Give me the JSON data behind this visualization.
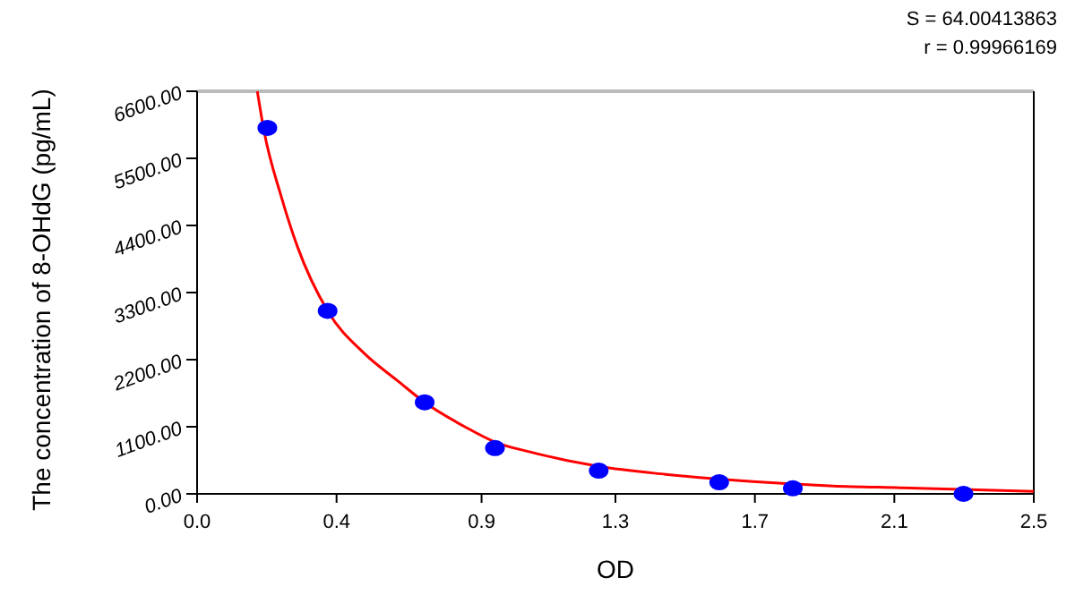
{
  "chart_data": {
    "type": "scatter",
    "xlabel": "OD",
    "ylabel": "The concentration of 8-OHdG (pg/mL)",
    "annotations": [
      "S = 64.00413863",
      "r = 0.99966169"
    ],
    "xlim": [
      0,
      2.5
    ],
    "ylim": [
      0,
      6600
    ],
    "xticks": [
      {
        "value": 0,
        "label": "0.0"
      },
      {
        "value": 0.4167,
        "label": "0.4"
      },
      {
        "value": 0.85,
        "label": "0.9"
      },
      {
        "value": 1.25,
        "label": "1.3"
      },
      {
        "value": 1.6667,
        "label": "1.7"
      },
      {
        "value": 2.0833,
        "label": "2.1"
      },
      {
        "value": 2.5,
        "label": "2.5"
      }
    ],
    "yticks": [
      {
        "value": 0,
        "label": "0.00"
      },
      {
        "value": 1100,
        "label": "1100.00"
      },
      {
        "value": 2200,
        "label": "2200.00"
      },
      {
        "value": 3300,
        "label": "3300.00"
      },
      {
        "value": 4400,
        "label": "4400.00"
      },
      {
        "value": 5500,
        "label": "5500.00"
      },
      {
        "value": 6600,
        "label": "6600.00"
      }
    ],
    "grid": false,
    "marker": "circle",
    "series": [
      {
        "type": "line",
        "marker": "none",
        "color": "#ff0000",
        "x": [
          0.18,
          0.2,
          0.25,
          0.3,
          0.39,
          0.5,
          0.6,
          0.68,
          0.8,
          0.89,
          1.0,
          1.2,
          1.4,
          1.66,
          1.9,
          2.1,
          2.5
        ],
        "values": [
          6600,
          5950,
          4900,
          4050,
          3000,
          2300,
          1850,
          1500,
          1100,
          850,
          680,
          450,
          320,
          200,
          130,
          100,
          40
        ]
      },
      {
        "color": "#0000ff",
        "x": [
          0.21,
          0.39,
          0.68,
          0.89,
          1.2,
          1.56,
          1.78,
          2.29
        ],
        "values": [
          6000,
          3000,
          1500,
          750,
          380,
          190,
          90,
          0
        ]
      }
    ]
  }
}
